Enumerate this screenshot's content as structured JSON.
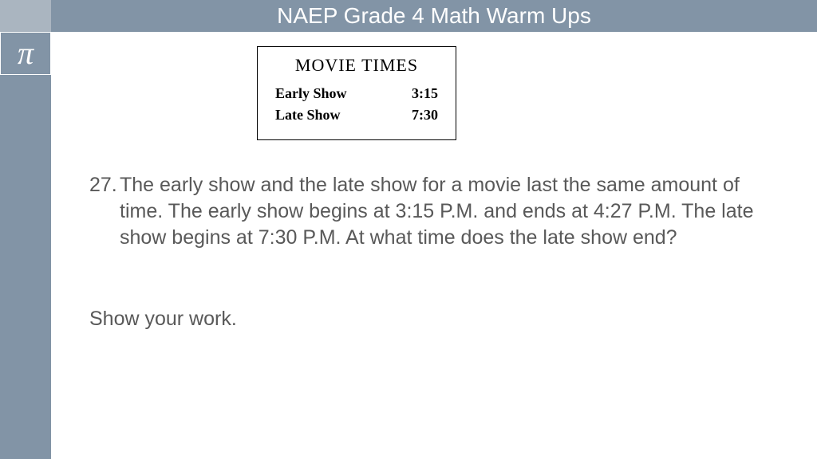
{
  "colors": {
    "rail": "#8294a6",
    "rail_top": "#aab5c0",
    "title_text": "#ffffff",
    "body_text": "#595959",
    "box_border": "#000000",
    "background": "#ffffff"
  },
  "sidebar": {
    "pi_symbol": "π"
  },
  "header": {
    "title": "NAEP Grade 4 Math Warm Ups"
  },
  "movie_box": {
    "title": "MOVIE TIMES",
    "rows": [
      {
        "label": "Early Show",
        "time": "3:15"
      },
      {
        "label": "Late Show",
        "time": "7:30"
      }
    ]
  },
  "question": {
    "number": "27.",
    "text": "The early show and the late show for a movie last the same amount of time.   The early show begins at 3:15 P.M.  and ends at 4:27 P.M.   The late show begins at 7:30 P.M.   At what time does the late show end?"
  },
  "instruction": "Show your work."
}
